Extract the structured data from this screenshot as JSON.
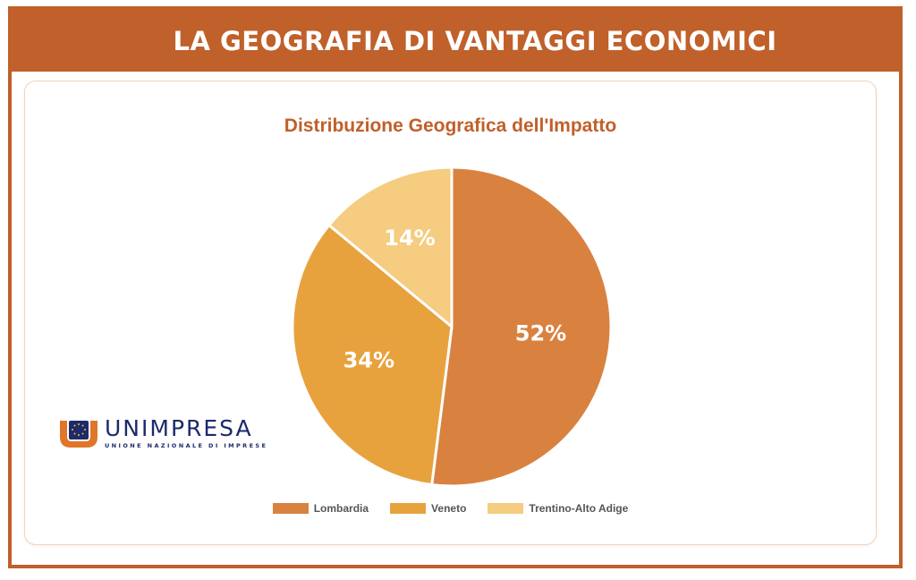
{
  "header": {
    "title": "LA GEOGRAFIA DI VANTAGGI ECONOMICI"
  },
  "colors": {
    "brand": "#c0602a",
    "lombardia": "#d98240",
    "veneto": "#e8a23d",
    "trentino": "#f5cc80"
  },
  "chart_data": {
    "type": "pie",
    "title": "Distribuzione Geografica dell'Impatto",
    "categories": [
      "Lombardia",
      "Veneto",
      "Trentino-Alto Adige"
    ],
    "values": [
      52,
      34,
      14
    ],
    "labels": [
      "52%",
      "34%",
      "14%"
    ],
    "colors": [
      "#d98240",
      "#e8a23d",
      "#f5cc80"
    ],
    "legend": "bottom"
  },
  "logo": {
    "name": "UNIMPRESA",
    "subtitle": "UNIONE NAZIONALE DI IMPRESE"
  }
}
